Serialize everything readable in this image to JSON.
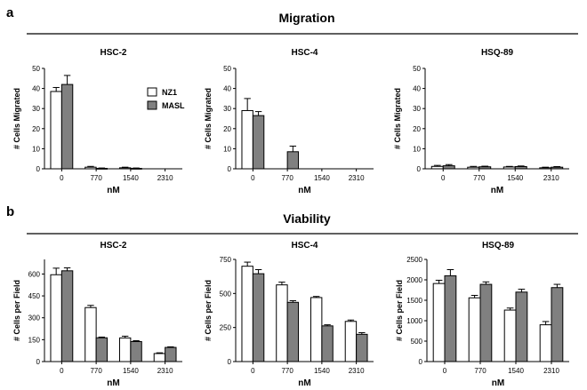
{
  "figure": {
    "panels": [
      {
        "letter": "a",
        "title": "Migration"
      },
      {
        "letter": "b",
        "title": "Viability"
      }
    ],
    "legend": {
      "items": [
        "NZ1",
        "MASL"
      ]
    },
    "colors": {
      "NZ1": "#ffffff",
      "MASL": "#808080",
      "stroke": "#000000",
      "text": "#000000"
    }
  },
  "chart_data": [
    {
      "type": "bar",
      "panel": "a",
      "title": "HSC-2",
      "categories": [
        "0",
        "770",
        "1540",
        "2310"
      ],
      "xlabel": "nM",
      "ylabel": "# Cells Migrated",
      "ylim": [
        0,
        50
      ],
      "yticks": [
        "0",
        "10",
        "20",
        "30",
        "40",
        "50"
      ],
      "series": [
        {
          "name": "NZ1",
          "values": [
            38.5,
            0.8,
            0.5,
            0
          ],
          "errors": [
            2,
            0.4,
            0.3,
            0
          ]
        },
        {
          "name": "MASL",
          "values": [
            42,
            0.2,
            0.2,
            0
          ],
          "errors": [
            4.5,
            0.2,
            0.2,
            0
          ]
        }
      ],
      "legend": "top-right"
    },
    {
      "type": "bar",
      "panel": "a",
      "title": "HSC-4",
      "categories": [
        "0",
        "770",
        "1540",
        "2310"
      ],
      "xlabel": "nM",
      "ylabel": "# Cells Migrated",
      "ylim": [
        0,
        50
      ],
      "yticks": [
        "0",
        "10",
        "20",
        "30",
        "40",
        "50"
      ],
      "series": [
        {
          "name": "NZ1",
          "values": [
            29,
            0,
            0,
            0
          ],
          "errors": [
            6,
            0,
            0,
            0
          ]
        },
        {
          "name": "MASL",
          "values": [
            26.5,
            8.5,
            0,
            0
          ],
          "errors": [
            2,
            2.8,
            0,
            0
          ]
        }
      ]
    },
    {
      "type": "bar",
      "panel": "a",
      "title": "HSQ-89",
      "categories": [
        "0",
        "770",
        "1540",
        "2310"
      ],
      "xlabel": "nM",
      "ylabel": "# Cells Migrated",
      "ylim": [
        0,
        50
      ],
      "yticks": [
        "0",
        "10",
        "20",
        "30",
        "40",
        "50"
      ],
      "series": [
        {
          "name": "NZ1",
          "values": [
            1.2,
            0.8,
            0.9,
            0.5
          ],
          "errors": [
            0.5,
            0.4,
            0.3,
            0.3
          ]
        },
        {
          "name": "MASL",
          "values": [
            1.5,
            1.0,
            1.1,
            0.8
          ],
          "errors": [
            0.6,
            0.3,
            0.3,
            0.3
          ]
        }
      ]
    },
    {
      "type": "bar",
      "panel": "b",
      "title": "HSC-2",
      "categories": [
        "0",
        "770",
        "1540",
        "2310"
      ],
      "xlabel": "nM",
      "ylabel": "# Cells per Field",
      "ylim": [
        0,
        700
      ],
      "yticks": [
        "0",
        "150",
        "300",
        "450",
        "600"
      ],
      "series": [
        {
          "name": "NZ1",
          "values": [
            595,
            370,
            162,
            55
          ],
          "errors": [
            45,
            15,
            12,
            5
          ]
        },
        {
          "name": "MASL",
          "values": [
            622,
            163,
            137,
            97
          ],
          "errors": [
            20,
            5,
            6,
            4
          ]
        }
      ]
    },
    {
      "type": "bar",
      "panel": "b",
      "title": "HSC-4",
      "categories": [
        "0",
        "770",
        "1540",
        "2310"
      ],
      "xlabel": "nM",
      "ylabel": "# Cells per Field",
      "ylim": [
        0,
        750
      ],
      "yticks": [
        "0",
        "250",
        "500",
        "750"
      ],
      "series": [
        {
          "name": "NZ1",
          "values": [
            700,
            563,
            470,
            295
          ],
          "errors": [
            30,
            20,
            8,
            10
          ]
        },
        {
          "name": "MASL",
          "values": [
            645,
            435,
            262,
            200
          ],
          "errors": [
            30,
            12,
            8,
            12
          ]
        }
      ]
    },
    {
      "type": "bar",
      "panel": "b",
      "title": "HSQ-89",
      "categories": [
        "0",
        "770",
        "1540",
        "2310"
      ],
      "xlabel": "nM",
      "ylabel": "# Cells per Field",
      "ylim": [
        0,
        2500
      ],
      "yticks": [
        "0",
        "500",
        "1000",
        "1500",
        "2000",
        "2500"
      ],
      "series": [
        {
          "name": "NZ1",
          "values": [
            1910,
            1560,
            1260,
            900
          ],
          "errors": [
            80,
            60,
            50,
            80
          ]
        },
        {
          "name": "MASL",
          "values": [
            2100,
            1890,
            1700,
            1810
          ],
          "errors": [
            150,
            60,
            70,
            80
          ]
        }
      ]
    }
  ]
}
